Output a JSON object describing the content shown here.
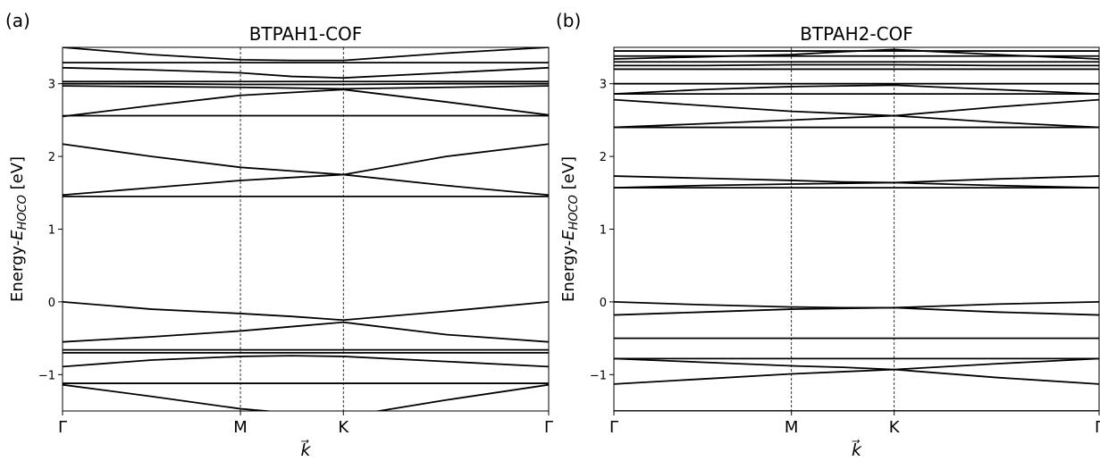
{
  "chart_data": [
    {
      "type": "line",
      "panel_label": "(a)",
      "title": "BTPAH1-COF",
      "ylabel_parts": [
        "Energy-",
        "E",
        "HOCO",
        " [eV]"
      ],
      "xlabel": "k⃗",
      "color": "#000000",
      "x": [
        0,
        0.289,
        0.577,
        0.744,
        0.911,
        1.244,
        1.577
      ],
      "xlim": [
        0,
        1.577
      ],
      "xticks": [
        {
          "value": 0,
          "label": "Γ"
        },
        {
          "value": 0.577,
          "label": "M"
        },
        {
          "value": 0.911,
          "label": "K"
        },
        {
          "value": 1.577,
          "label": "Γ"
        }
      ],
      "ylim": [
        -1.5,
        3.5
      ],
      "yticks": [
        {
          "value": -1,
          "label": "−1"
        },
        0,
        1,
        2,
        3
      ],
      "series": [
        {
          "values": [
            3.5,
            3.4,
            3.33,
            3.32,
            3.32,
            3.42,
            3.5
          ]
        },
        {
          "values": [
            3.29,
            3.29,
            3.29,
            3.29,
            3.29,
            3.29,
            3.29
          ]
        },
        {
          "values": [
            3.22,
            3.19,
            3.15,
            3.1,
            3.08,
            3.15,
            3.22
          ]
        },
        {
          "values": [
            3.03,
            3.03,
            3.03,
            3.03,
            3.03,
            3.03,
            3.03
          ]
        },
        {
          "values": [
            3.0,
            3.0,
            2.99,
            2.99,
            2.99,
            3.0,
            3.0
          ]
        },
        {
          "values": [
            2.97,
            2.96,
            2.95,
            2.94,
            2.93,
            2.95,
            2.97
          ]
        },
        {
          "values": [
            2.55,
            2.7,
            2.84,
            2.88,
            2.92,
            2.75,
            2.57
          ]
        },
        {
          "values": [
            2.56,
            2.56,
            2.56,
            2.56,
            2.56,
            2.56,
            2.56
          ]
        },
        {
          "values": [
            2.17,
            2.0,
            1.85,
            1.8,
            1.75,
            1.6,
            1.47
          ]
        },
        {
          "values": [
            1.47,
            1.57,
            1.67,
            1.71,
            1.75,
            2.0,
            2.17
          ]
        },
        {
          "values": [
            1.45,
            1.45,
            1.45,
            1.45,
            1.45,
            1.45,
            1.45
          ]
        },
        {
          "values": [
            0,
            -0.1,
            -0.16,
            -0.2,
            -0.25,
            -0.13,
            0
          ]
        },
        {
          "values": [
            -0.55,
            -0.48,
            -0.4,
            -0.34,
            -0.28,
            -0.45,
            -0.55
          ]
        },
        {
          "values": [
            -0.66,
            -0.66,
            -0.66,
            -0.66,
            -0.66,
            -0.66,
            -0.66
          ]
        },
        {
          "values": [
            -0.7,
            -0.7,
            -0.7,
            -0.7,
            -0.7,
            -0.7,
            -0.7
          ]
        },
        {
          "values": [
            -0.89,
            -0.8,
            -0.75,
            -0.74,
            -0.75,
            -0.82,
            -0.89
          ]
        },
        {
          "values": [
            -1.12,
            -1.12,
            -1.12,
            -1.12,
            -1.12,
            -1.12,
            -1.12
          ]
        },
        {
          "values": [
            -1.14,
            -1.3,
            -1.47,
            -1.53,
            -1.58,
            -1.35,
            -1.14
          ]
        }
      ]
    },
    {
      "type": "line",
      "panel_label": "(b)",
      "title": "BTPAH2-COF",
      "ylabel_parts": [
        "Energy-",
        "E",
        "HOCO",
        " [eV]"
      ],
      "xlabel": "k⃗",
      "color": "#000000",
      "x": [
        0,
        0.289,
        0.577,
        0.744,
        0.911,
        1.244,
        1.577
      ],
      "xlim": [
        0,
        1.577
      ],
      "xticks": [
        {
          "value": 0,
          "label": "Γ"
        },
        {
          "value": 0.577,
          "label": "M"
        },
        {
          "value": 0.911,
          "label": "K"
        },
        {
          "value": 1.577,
          "label": "Γ"
        }
      ],
      "ylim": [
        -1.5,
        3.5
      ],
      "yticks": [
        {
          "value": -1,
          "label": "−1"
        },
        0,
        1,
        2,
        3
      ],
      "series": [
        {
          "values": [
            3.45,
            3.45,
            3.45,
            3.45,
            3.45,
            3.45,
            3.45
          ]
        },
        {
          "values": [
            3.34,
            3.37,
            3.4,
            3.44,
            3.47,
            3.4,
            3.34
          ]
        },
        {
          "values": [
            3.38,
            3.38,
            3.38,
            3.38,
            3.38,
            3.38,
            3.38
          ]
        },
        {
          "values": [
            3.3,
            3.3,
            3.3,
            3.3,
            3.3,
            3.3,
            3.3
          ]
        },
        {
          "values": [
            3.25,
            3.25,
            3.26,
            3.26,
            3.26,
            3.25,
            3.25
          ]
        },
        {
          "values": [
            3.2,
            3.2,
            3.2,
            3.2,
            3.2,
            3.2,
            3.2
          ]
        },
        {
          "values": [
            3.0,
            3.0,
            3.0,
            3.0,
            3.0,
            3.0,
            3.0
          ]
        },
        {
          "values": [
            2.86,
            2.92,
            2.96,
            2.97,
            2.98,
            2.92,
            2.86
          ]
        },
        {
          "values": [
            2.86,
            2.86,
            2.86,
            2.86,
            2.86,
            2.86,
            2.86
          ]
        },
        {
          "values": [
            2.78,
            2.7,
            2.62,
            2.59,
            2.56,
            2.68,
            2.78
          ]
        },
        {
          "values": [
            2.4,
            2.45,
            2.5,
            2.53,
            2.56,
            2.47,
            2.4
          ]
        },
        {
          "values": [
            2.4,
            2.4,
            2.4,
            2.4,
            2.4,
            2.4,
            2.4
          ]
        },
        {
          "values": [
            1.73,
            1.7,
            1.67,
            1.65,
            1.64,
            1.69,
            1.73
          ]
        },
        {
          "values": [
            1.57,
            1.6,
            1.62,
            1.63,
            1.64,
            1.6,
            1.57
          ]
        },
        {
          "values": [
            1.57,
            1.57,
            1.57,
            1.57,
            1.57,
            1.57,
            1.57
          ]
        },
        {
          "values": [
            0,
            -0.04,
            -0.07,
            -0.08,
            -0.08,
            -0.03,
            0
          ]
        },
        {
          "values": [
            -0.18,
            -0.14,
            -0.1,
            -0.09,
            -0.08,
            -0.14,
            -0.18
          ]
        },
        {
          "values": [
            -0.5,
            -0.5,
            -0.5,
            -0.5,
            -0.5,
            -0.5,
            -0.5
          ]
        },
        {
          "values": [
            -0.78,
            -0.78,
            -0.78,
            -0.78,
            -0.78,
            -0.78,
            -0.78
          ]
        },
        {
          "values": [
            -0.78,
            -0.83,
            -0.88,
            -0.9,
            -0.93,
            -0.85,
            -0.78
          ]
        },
        {
          "values": [
            -1.13,
            -1.06,
            -0.99,
            -0.96,
            -0.93,
            -1.04,
            -1.13
          ]
        },
        {
          "values": [
            -1.5,
            -1.5,
            -1.5,
            -1.5,
            -1.5,
            -1.5,
            -1.5
          ]
        }
      ]
    }
  ]
}
